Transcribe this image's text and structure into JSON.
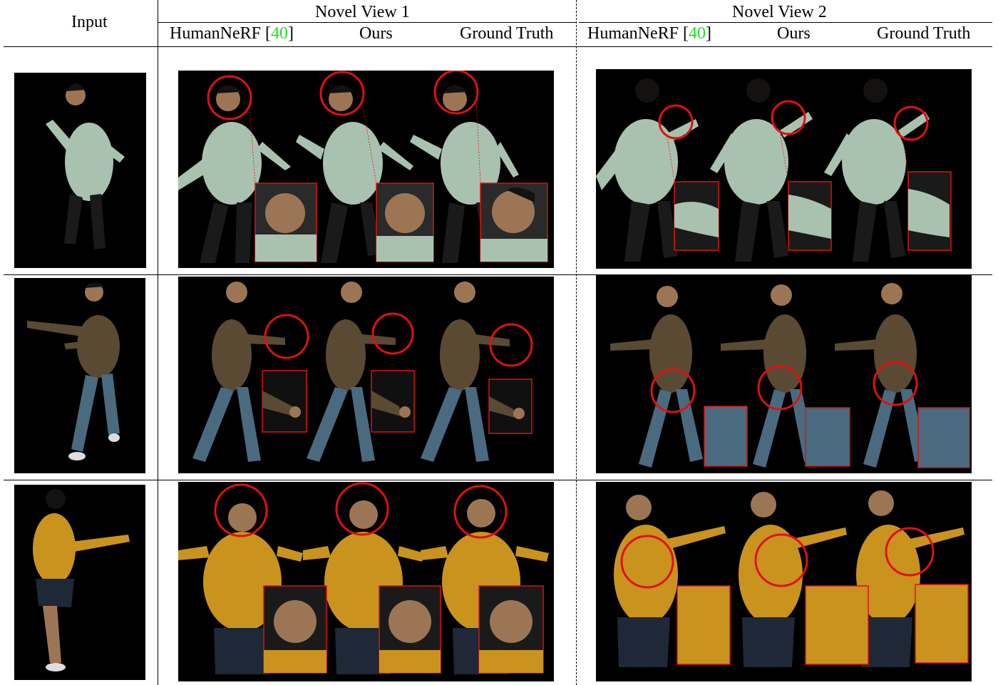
{
  "header": {
    "input_label": "Input",
    "group1_title": "Novel View 1",
    "group2_title": "Novel View 2",
    "method_humannerf": "HumanNeRF [",
    "method_humannerf_cite": "40",
    "method_humannerf_close": "]",
    "method_ours": "Ours",
    "method_gt": "Ground Truth"
  },
  "colors": {
    "highlight": "#e01010",
    "citation": "#22dd22",
    "hoodie": "#a9c2b0",
    "cardigan": "#5a4a34",
    "jeans": "#4a6a80",
    "shirt": "#c9931e",
    "shorts": "#1e2836",
    "pants": "#1a1a1a",
    "skin": "#9c7654",
    "hair": "#141210"
  },
  "rows": [
    {
      "subject": "hoodie",
      "zoom": "face"
    },
    {
      "subject": "cardigan",
      "zoom": "hand"
    },
    {
      "subject": "shirt",
      "zoom": "face"
    }
  ]
}
